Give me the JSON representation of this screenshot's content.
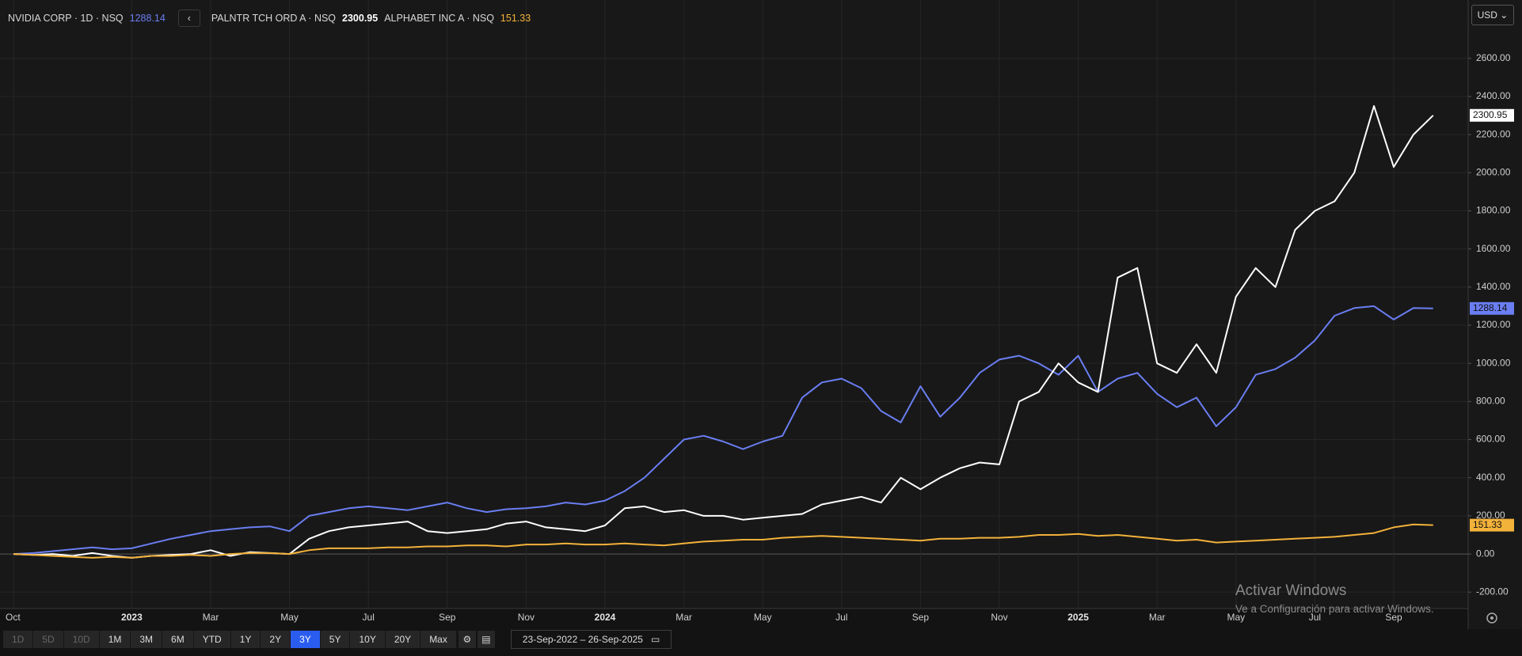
{
  "chart_data": {
    "type": "line",
    "categories": [
      "Oct",
      null,
      null,
      null,
      null,
      null,
      "2023",
      null,
      null,
      null,
      "Mar",
      null,
      null,
      null,
      "May",
      null,
      null,
      null,
      "Jul",
      null,
      null,
      null,
      "Sep",
      null,
      null,
      null,
      "Nov",
      null,
      null,
      null,
      "2024",
      null,
      null,
      null,
      "Mar",
      null,
      null,
      null,
      "May",
      null,
      null,
      null,
      "Jul",
      null,
      null,
      null,
      "Sep",
      null,
      null,
      null,
      "Nov",
      null,
      null,
      null,
      "2025",
      null,
      null,
      null,
      "Mar",
      null,
      null,
      null,
      "May",
      null,
      null,
      null,
      "Jul",
      null,
      null,
      null,
      "Sep",
      null,
      null
    ],
    "series": [
      {
        "name": "NVIDIA CORP · 1D · NSQ",
        "color": "#6a7ef2",
        "values": [
          0,
          5,
          15,
          25,
          35,
          25,
          30,
          55,
          80,
          100,
          120,
          130,
          140,
          145,
          120,
          200,
          220,
          240,
          250,
          240,
          230,
          250,
          270,
          240,
          220,
          235,
          240,
          250,
          270,
          260,
          280,
          330,
          400,
          500,
          600,
          620,
          590,
          550,
          590,
          620,
          820,
          900,
          920,
          870,
          750,
          690,
          880,
          720,
          820,
          950,
          1020,
          1040,
          1000,
          940,
          1040,
          850,
          920,
          950,
          840,
          770,
          820,
          670,
          770,
          940,
          970,
          1030,
          1120,
          1250,
          1290,
          1300,
          1230,
          1290,
          1288.14
        ]
      },
      {
        "name": "PALNTR TCH ORD A · NSQ",
        "color": "#ffffff",
        "values": [
          0,
          -5,
          0,
          -10,
          5,
          -10,
          -20,
          -10,
          -5,
          0,
          20,
          -10,
          10,
          5,
          0,
          80,
          120,
          140,
          150,
          160,
          170,
          120,
          110,
          120,
          130,
          160,
          170,
          140,
          130,
          120,
          150,
          240,
          250,
          220,
          230,
          200,
          200,
          180,
          190,
          200,
          210,
          260,
          280,
          300,
          270,
          400,
          340,
          400,
          450,
          480,
          470,
          800,
          850,
          1000,
          900,
          850,
          1450,
          1500,
          1000,
          950,
          1100,
          950,
          1350,
          1500,
          1400,
          1700,
          1800,
          1850,
          2000,
          2350,
          2030,
          2200,
          2300.95
        ]
      },
      {
        "name": "ALPHABET INC A · NSQ",
        "color": "#f3b23a",
        "values": [
          0,
          -5,
          -10,
          -15,
          -20,
          -15,
          -20,
          -10,
          -10,
          -5,
          -10,
          0,
          5,
          5,
          0,
          20,
          30,
          30,
          30,
          35,
          35,
          40,
          40,
          45,
          45,
          40,
          50,
          50,
          55,
          50,
          50,
          55,
          50,
          45,
          55,
          65,
          70,
          75,
          75,
          85,
          90,
          95,
          90,
          85,
          80,
          75,
          70,
          80,
          80,
          85,
          85,
          90,
          100,
          100,
          105,
          95,
          100,
          90,
          80,
          70,
          75,
          60,
          65,
          70,
          75,
          80,
          85,
          90,
          100,
          110,
          140,
          155,
          151.33
        ]
      }
    ],
    "ylim": [
      -286,
      2906
    ],
    "yticks": [
      {
        "value": -200,
        "label": "-200.00"
      },
      {
        "value": 0,
        "label": "0.00"
      },
      {
        "value": 200,
        "label": "200.00"
      },
      {
        "value": 400,
        "label": "400.00"
      },
      {
        "value": 600,
        "label": "600.00"
      },
      {
        "value": 800,
        "label": "800.00"
      },
      {
        "value": 1000,
        "label": "1000.00"
      },
      {
        "value": 1200,
        "label": "1200.00"
      },
      {
        "value": 1400,
        "label": "1400.00"
      },
      {
        "value": 1600,
        "label": "1600.00"
      },
      {
        "value": 1800,
        "label": "1800.00"
      },
      {
        "value": 2000,
        "label": "2000.00"
      },
      {
        "value": 2200,
        "label": "2200.00"
      },
      {
        "value": 2400,
        "label": "2400.00"
      },
      {
        "value": 2600,
        "label": "2600.00"
      }
    ],
    "grid": true
  },
  "ui": {
    "currency": "USD",
    "ranges": [
      "1D",
      "5D",
      "10D",
      "1M",
      "3M",
      "6M",
      "YTD",
      "1Y",
      "2Y",
      "3Y",
      "5Y",
      "10Y",
      "20Y",
      "Max"
    ],
    "disabled_ranges": [
      "1D",
      "5D",
      "10D"
    ],
    "active_range": "3Y",
    "date_range": "23-Sep-2022 – 26-Sep-2025",
    "watermark": {
      "title": "Activar Windows",
      "subtitle": "Ve a Configuración para activar Windows."
    }
  }
}
